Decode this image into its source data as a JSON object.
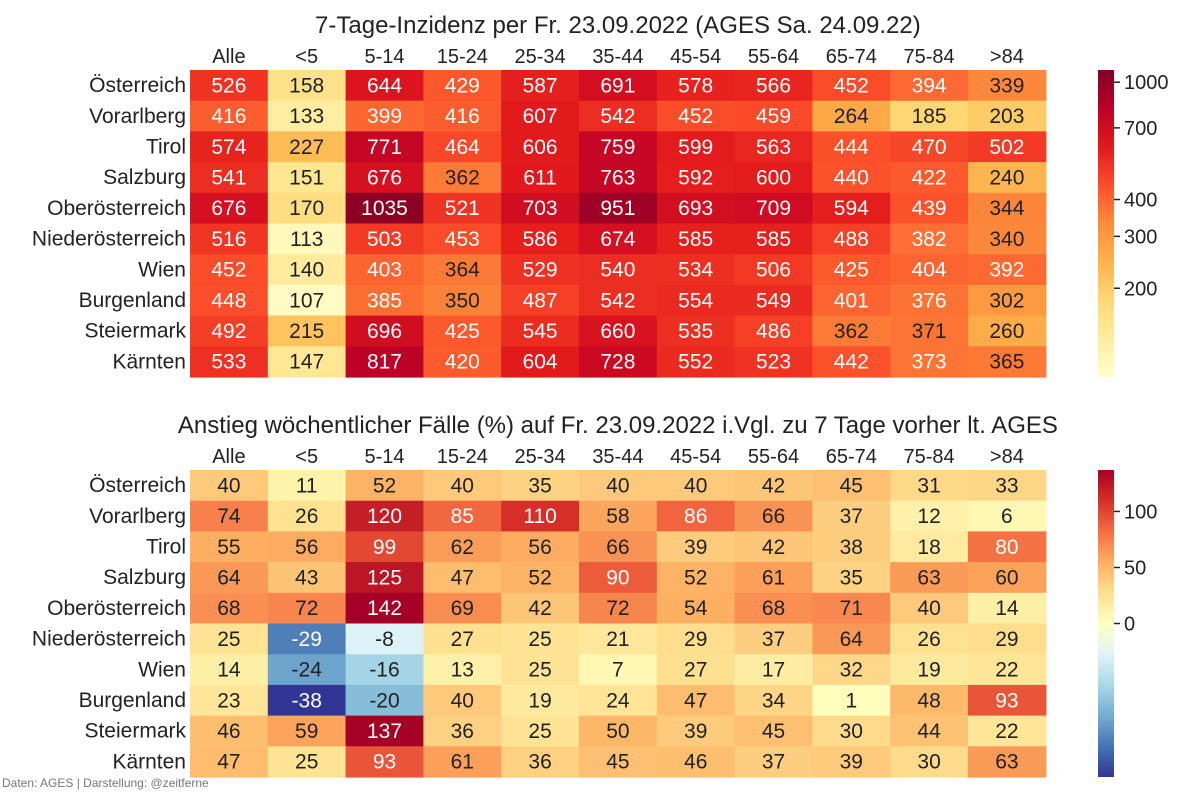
{
  "footer": "Daten: AGES | Darstellung: @zeitferne",
  "chart_data": [
    {
      "type": "heatmap",
      "title": "7-Tage-Inzidenz per Fr. 23.09.2022  (AGES Sa. 24.09.22)",
      "columns": [
        "Alle",
        "<5",
        "5-14",
        "15-24",
        "25-34",
        "35-44",
        "45-54",
        "55-64",
        "65-74",
        "75-84",
        ">84"
      ],
      "rows": [
        "Österreich",
        "Vorarlberg",
        "Tirol",
        "Salzburg",
        "Oberösterreich",
        "Niederösterreich",
        "Wien",
        "Burgenland",
        "Steiermark",
        "Kärnten"
      ],
      "values": [
        [
          526,
          158,
          644,
          429,
          587,
          691,
          578,
          566,
          452,
          394,
          339
        ],
        [
          416,
          133,
          399,
          416,
          607,
          542,
          452,
          459,
          264,
          185,
          203
        ],
        [
          574,
          227,
          771,
          464,
          606,
          759,
          599,
          563,
          444,
          470,
          502
        ],
        [
          541,
          151,
          676,
          362,
          611,
          763,
          592,
          600,
          440,
          422,
          240
        ],
        [
          676,
          170,
          1035,
          521,
          703,
          951,
          693,
          709,
          594,
          439,
          344
        ],
        [
          516,
          113,
          503,
          453,
          586,
          674,
          585,
          585,
          488,
          382,
          340
        ],
        [
          452,
          140,
          403,
          364,
          529,
          540,
          534,
          506,
          425,
          404,
          392
        ],
        [
          448,
          107,
          385,
          350,
          487,
          542,
          554,
          549,
          401,
          376,
          302
        ],
        [
          492,
          215,
          696,
          425,
          545,
          660,
          535,
          486,
          362,
          371,
          260
        ],
        [
          533,
          147,
          817,
          420,
          604,
          728,
          552,
          523,
          442,
          373,
          365
        ]
      ],
      "colormap": "YlOrRd",
      "scale": "log",
      "vmin": 100,
      "vmax": 1100,
      "colorbar_ticks": [
        1000,
        700,
        400,
        300,
        200
      ]
    },
    {
      "type": "heatmap",
      "title": "Anstieg wöchentlicher Fälle (%) auf Fr. 23.09.2022 i.Vgl. zu 7 Tage vorher lt. AGES",
      "columns": [
        "Alle",
        "<5",
        "5-14",
        "15-24",
        "25-34",
        "35-44",
        "45-54",
        "55-64",
        "65-74",
        "75-84",
        ">84"
      ],
      "rows": [
        "Österreich",
        "Vorarlberg",
        "Tirol",
        "Salzburg",
        "Oberösterreich",
        "Niederösterreich",
        "Wien",
        "Burgenland",
        "Steiermark",
        "Kärnten"
      ],
      "values": [
        [
          40,
          11,
          52,
          40,
          35,
          40,
          40,
          42,
          45,
          31,
          33
        ],
        [
          74,
          26,
          120,
          85,
          110,
          58,
          86,
          66,
          37,
          12,
          6
        ],
        [
          55,
          56,
          99,
          62,
          56,
          66,
          39,
          42,
          38,
          18,
          80
        ],
        [
          64,
          43,
          125,
          47,
          52,
          90,
          52,
          61,
          35,
          63,
          60
        ],
        [
          68,
          72,
          142,
          69,
          42,
          72,
          54,
          68,
          71,
          40,
          14
        ],
        [
          25,
          -29,
          -8,
          27,
          25,
          21,
          29,
          37,
          64,
          26,
          29
        ],
        [
          14,
          -24,
          -16,
          13,
          25,
          7,
          27,
          17,
          32,
          19,
          22
        ],
        [
          23,
          -38,
          -20,
          40,
          19,
          24,
          47,
          34,
          1,
          48,
          93
        ],
        [
          46,
          59,
          137,
          36,
          25,
          50,
          39,
          45,
          30,
          44,
          22
        ],
        [
          47,
          25,
          93,
          61,
          36,
          45,
          46,
          37,
          39,
          30,
          63
        ]
      ],
      "colormap": "RdYlBu_r",
      "scale": "linear",
      "vmin": -38,
      "vmax": 137,
      "center": 0,
      "colorbar_ticks": [
        100,
        50,
        0
      ]
    }
  ]
}
